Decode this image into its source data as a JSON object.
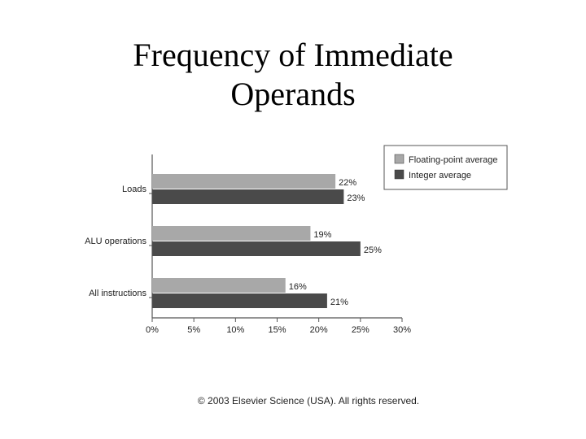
{
  "slide": {
    "title_line1": "Frequency of Immediate",
    "title_line2": "Operands",
    "copyright": "© 2003 Elsevier Science (USA). All rights reserved."
  },
  "colors": {
    "floating_point": "#a8a8a8",
    "integer": "#4a4a4a",
    "axis": "#555555"
  },
  "chart_data": {
    "type": "bar",
    "orientation": "horizontal",
    "categories": [
      "Loads",
      "ALU operations",
      "All instructions"
    ],
    "series": [
      {
        "name": "Floating-point average",
        "values": [
          22,
          19,
          16
        ],
        "labels": [
          "22%",
          "19%",
          "16%"
        ]
      },
      {
        "name": "Integer average",
        "values": [
          23,
          25,
          21
        ],
        "labels": [
          "23%",
          "25%",
          "21%"
        ]
      }
    ],
    "xlim": [
      0,
      30
    ],
    "xticks": [
      0,
      5,
      10,
      15,
      20,
      25,
      30
    ],
    "xtick_labels": [
      "0%",
      "5%",
      "10%",
      "15%",
      "20%",
      "25%",
      "30%"
    ],
    "grid": false,
    "legend_position": "top-right"
  }
}
